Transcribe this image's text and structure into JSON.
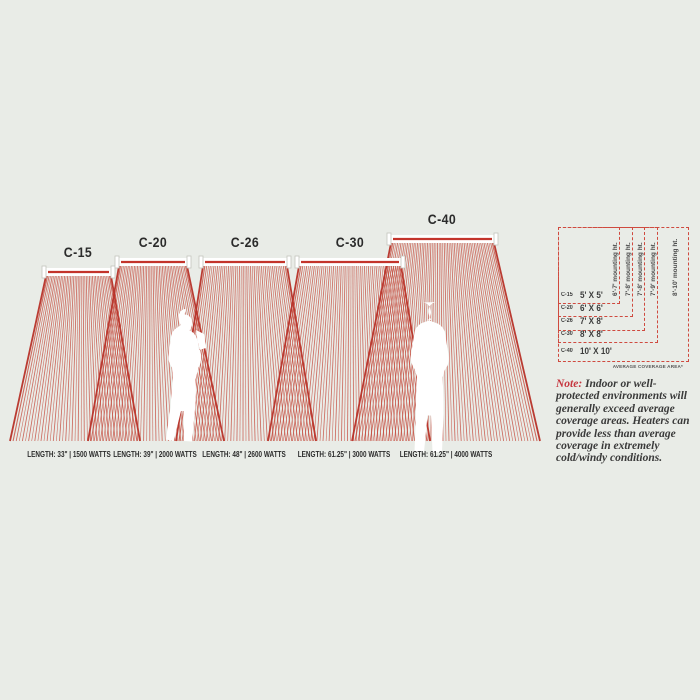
{
  "colors": {
    "background": "#e9ece7",
    "accent_red": "#c0392b",
    "edge_red": "#b73228",
    "text_dark": "#2b2b2b"
  },
  "heaters": [
    {
      "model": "C-15",
      "spec": "LENGTH: 33\" | 1500 WATTS",
      "coverage": "5' X 5'",
      "mounting": "6'-7' mounting ht."
    },
    {
      "model": "C-20",
      "spec": "LENGTH: 39\" | 2000 WATTS",
      "coverage": "6' X 6'",
      "mounting": "7'-8' mounting ht."
    },
    {
      "model": "C-26",
      "spec": "LENGTH: 48\" | 2600 WATTS",
      "coverage": "7' X 8'",
      "mounting": "7'-8' mounting ht."
    },
    {
      "model": "C-30",
      "spec": "LENGTH: 61.25\" | 3000 WATTS",
      "coverage": "8' X 8'",
      "mounting": "7'-9' mounting ht."
    },
    {
      "model": "C-40",
      "spec": "LENGTH: 61.25\" | 4000 WATTS",
      "coverage": "10' X 10'",
      "mounting": "8'-10' mounting ht."
    }
  ],
  "table": {
    "footnote": "AVERAGE COVERAGE AREA*"
  },
  "note": {
    "prefix": "Note:",
    "body": "Indoor or well-protected environments will generally exceed average coverage areas. Heaters can provide less than average coverage in extremely cold/windy conditions."
  }
}
